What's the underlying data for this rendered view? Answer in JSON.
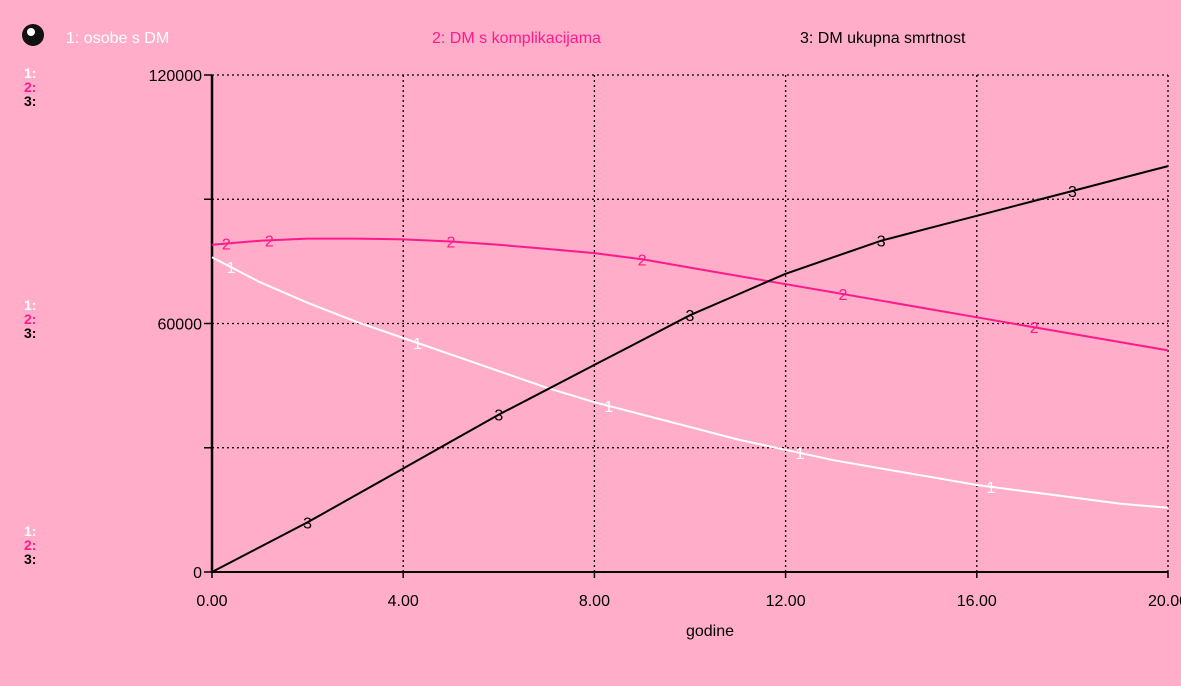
{
  "legend": {
    "s1": "1: osobe s DM",
    "s2": "2: DM s komplikacijama",
    "s3": "3: DM ukupna smrtnost"
  },
  "scale_labels": {
    "s1": "1:",
    "s2": "2:",
    "s3": "3:"
  },
  "colors": {
    "background": "#ffadc9",
    "s1": "#ffffff",
    "s2": "#ff1a8c",
    "s3": "#000000",
    "grid": "#000000"
  },
  "chart_data": {
    "type": "line",
    "title": "",
    "xlabel": "godine",
    "ylabel": "",
    "xlim": [
      0,
      20
    ],
    "ylim": [
      0,
      120000
    ],
    "x_ticks": [
      "0.00",
      "4.00",
      "8.00",
      "12.00",
      "16.00",
      "20.00"
    ],
    "y_ticks": [
      "0",
      "60000",
      "120000"
    ],
    "grid": true,
    "x": [
      0,
      1,
      2,
      3,
      4,
      5,
      6,
      7,
      8,
      9,
      10,
      11,
      12,
      13,
      14,
      15,
      16,
      17,
      18,
      19,
      20
    ],
    "series": [
      {
        "name": "1: osobe s DM",
        "marker": "1",
        "values": [
          76000,
          70000,
          65000,
          60500,
          56500,
          52500,
          48500,
          44500,
          41000,
          38000,
          35000,
          32000,
          29500,
          27000,
          25000,
          23000,
          21000,
          19500,
          18000,
          16500,
          15500
        ]
      },
      {
        "name": "2: DM s komplikacijama",
        "marker": "2",
        "values": [
          79000,
          80000,
          80500,
          80500,
          80300,
          79800,
          79000,
          78000,
          77000,
          75500,
          73500,
          71500,
          69500,
          67500,
          65500,
          63500,
          61500,
          59500,
          57500,
          55500,
          53500
        ]
      },
      {
        "name": "3: DM ukupna smrtnost",
        "marker": "3",
        "values": [
          0,
          6000,
          12000,
          18500,
          25000,
          31500,
          38000,
          44000,
          50000,
          56000,
          62000,
          67000,
          72000,
          76000,
          80000,
          83000,
          86000,
          89000,
          92000,
          95000,
          98000
        ]
      }
    ]
  }
}
